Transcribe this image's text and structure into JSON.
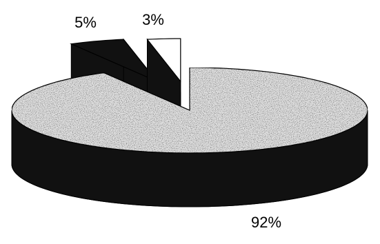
{
  "chart_data": {
    "type": "pie",
    "values": [
      5,
      3,
      92
    ],
    "value_labels": [
      "5%",
      "3%",
      "92%"
    ],
    "colors": [
      "#111111",
      "#ffffff",
      "#e2e2e2"
    ],
    "side_color": "#111111",
    "start_slice": 2
  }
}
